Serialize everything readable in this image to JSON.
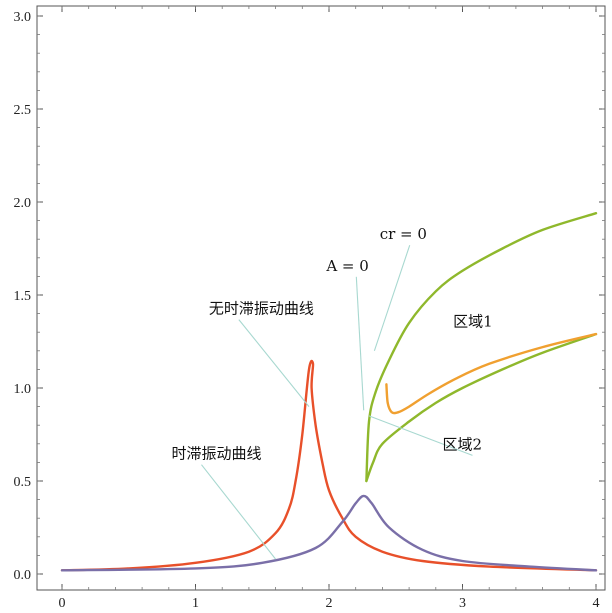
{
  "chart_data": {
    "type": "line",
    "xlim": [
      0,
      4
    ],
    "ylim": [
      0,
      3.0
    ],
    "x_ticks": [
      "0",
      "1",
      "2",
      "3",
      "4"
    ],
    "y_ticks": [
      "0.0",
      "0.5",
      "1.0",
      "1.5",
      "2.0",
      "2.5",
      "3.0"
    ],
    "grid": false,
    "series": [
      {
        "key": "undelayed",
        "color": "#e8502a",
        "points": [
          [
            0,
            0.02
          ],
          [
            0.5,
            0.03
          ],
          [
            1.0,
            0.06
          ],
          [
            1.4,
            0.12
          ],
          [
            1.6,
            0.22
          ],
          [
            1.7,
            0.35
          ],
          [
            1.75,
            0.5
          ],
          [
            1.8,
            0.75
          ],
          [
            1.85,
            1.1
          ],
          [
            1.88,
            1.13
          ],
          [
            1.87,
            1.0
          ],
          [
            1.9,
            0.8
          ],
          [
            1.95,
            0.6
          ],
          [
            2.0,
            0.45
          ],
          [
            2.1,
            0.3
          ],
          [
            2.2,
            0.2
          ],
          [
            2.4,
            0.12
          ],
          [
            2.7,
            0.07
          ],
          [
            3.2,
            0.04
          ],
          [
            4.0,
            0.02
          ]
        ]
      },
      {
        "key": "delayed",
        "color": "#7a6fa8",
        "points": [
          [
            0,
            0.02
          ],
          [
            1.0,
            0.03
          ],
          [
            1.5,
            0.06
          ],
          [
            1.9,
            0.14
          ],
          [
            2.1,
            0.28
          ],
          [
            2.2,
            0.38
          ],
          [
            2.26,
            0.42
          ],
          [
            2.32,
            0.38
          ],
          [
            2.45,
            0.25
          ],
          [
            2.7,
            0.13
          ],
          [
            3.0,
            0.07
          ],
          [
            3.5,
            0.04
          ],
          [
            4.0,
            0.02
          ]
        ]
      },
      {
        "key": "upper_branch",
        "color": "#8fb82c",
        "points": [
          [
            2.28,
            0.5
          ],
          [
            2.3,
            0.82
          ],
          [
            2.35,
            0.98
          ],
          [
            2.45,
            1.15
          ],
          [
            2.6,
            1.35
          ],
          [
            2.8,
            1.52
          ],
          [
            3.0,
            1.63
          ],
          [
            3.3,
            1.75
          ],
          [
            3.6,
            1.85
          ],
          [
            4.0,
            1.94
          ]
        ]
      },
      {
        "key": "lower_branch",
        "color": "#8fb82c",
        "points": [
          [
            2.28,
            0.5
          ],
          [
            2.33,
            0.6
          ],
          [
            2.4,
            0.7
          ],
          [
            2.6,
            0.82
          ],
          [
            2.8,
            0.92
          ],
          [
            3.0,
            1.0
          ],
          [
            3.3,
            1.1
          ],
          [
            3.6,
            1.19
          ],
          [
            4.0,
            1.29
          ]
        ]
      },
      {
        "key": "loop",
        "color": "#f0a030",
        "points": [
          [
            2.43,
            1.02
          ],
          [
            2.44,
            0.92
          ],
          [
            2.47,
            0.87
          ],
          [
            2.52,
            0.87
          ],
          [
            2.6,
            0.9
          ],
          [
            2.75,
            0.97
          ],
          [
            2.95,
            1.05
          ],
          [
            3.2,
            1.13
          ],
          [
            3.6,
            1.22
          ],
          [
            4.0,
            1.29
          ]
        ]
      }
    ],
    "annotations": [
      {
        "text": "无时滞振动曲线",
        "at": [
          1.85,
          0.9
        ],
        "label_pos": [
          1.1,
          1.4
        ]
      },
      {
        "text": "时滞振动曲线",
        "at": [
          1.6,
          0.08
        ],
        "label_pos": [
          0.82,
          0.62
        ]
      },
      {
        "text": "A = 0",
        "at": [
          2.26,
          0.88
        ],
        "label_pos": [
          1.98,
          1.63
        ]
      },
      {
        "text": "cr = 0",
        "at": [
          2.34,
          1.2
        ],
        "label_pos": [
          2.38,
          1.8
        ]
      },
      {
        "text": "区域1",
        "at": null,
        "label_pos": [
          2.93,
          1.33
        ]
      },
      {
        "text": "区域2",
        "at": [
          2.3,
          0.85
        ],
        "label_pos": [
          2.85,
          0.67
        ]
      }
    ]
  }
}
